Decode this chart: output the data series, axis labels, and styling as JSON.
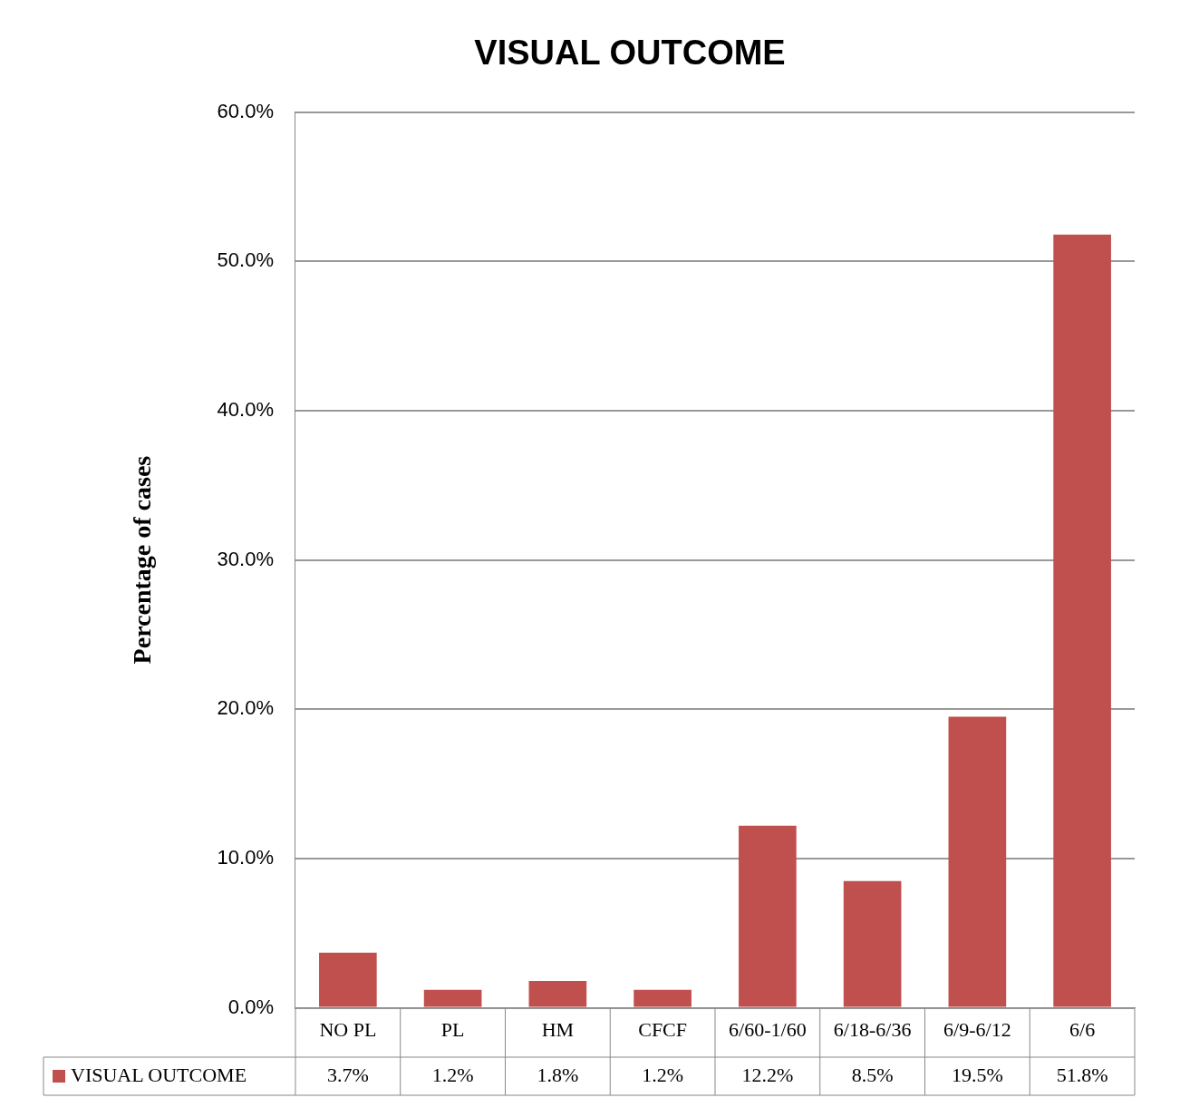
{
  "chart_data": {
    "type": "bar",
    "title": "VISUAL OUTCOME",
    "ylabel": "Percentage of cases",
    "categories": [
      "NO PL",
      "PL",
      "HM",
      "CFCF",
      "6/60-1/60",
      "6/18-6/36",
      "6/9-6/12",
      "6/6"
    ],
    "series": [
      {
        "name": "VISUAL OUTCOME",
        "color": "#c0504d",
        "values": [
          3.7,
          1.2,
          1.8,
          1.2,
          12.2,
          8.5,
          19.5,
          51.8
        ]
      }
    ],
    "value_labels": [
      "3.7%",
      "1.2%",
      "1.8%",
      "1.2%",
      "12.2%",
      "8.5%",
      "19.5%",
      "51.8%"
    ],
    "ylim": [
      0,
      60
    ],
    "yticks": [
      {
        "value": 0,
        "label": "0.0%"
      },
      {
        "value": 10,
        "label": "10.0%"
      },
      {
        "value": 20,
        "label": "20.0%"
      },
      {
        "value": 30,
        "label": "30.0%"
      },
      {
        "value": 40,
        "label": "40.0%"
      },
      {
        "value": 50,
        "label": "50.0%"
      },
      {
        "value": 60,
        "label": "60.0%"
      }
    ],
    "grid": "y",
    "legend": "bottom left"
  }
}
